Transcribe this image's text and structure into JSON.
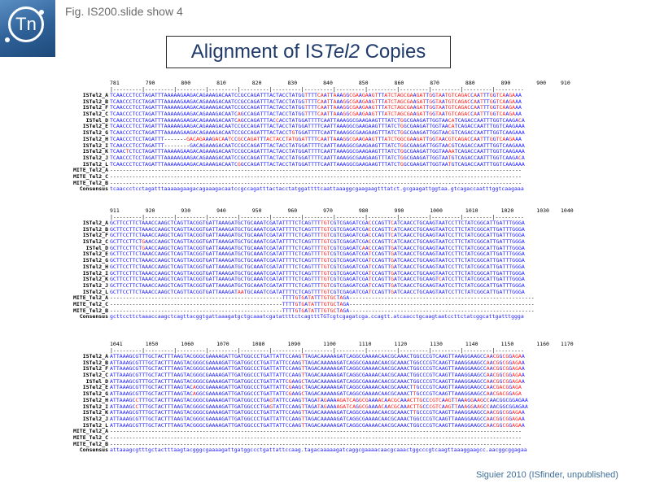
{
  "header": {
    "figure_label": "Fig. IS200.slide show 4",
    "title": "Alignment of ISTel2 Copies",
    "title_prefix": "Alignment of IS",
    "title_italic": "Tel2",
    "title_suffix": " Copies",
    "logo_text": "Tn"
  },
  "credit": "Siguier 2010 (ISfinder, unpublished)",
  "colors": {
    "identity": "#1a1aff",
    "variant": "#ff1a1a",
    "label": "#000000",
    "title": "#1f3a6b"
  },
  "blocks": [
    {
      "ruler": [
        "781",
        "790",
        "800",
        "810",
        "820",
        "830",
        "840",
        "850",
        "860",
        "870",
        "880",
        "890",
        "900",
        "910"
      ],
      "rows": [
        {
          "label": "ISTel2_A",
          "seq": "TCAACCCTCCTAGATTTAAAAAGAAGACAGAAAGACAATCCGCCAGATTTACTACCTATGGTTTTCAATTAAAGGCGAAGAAGTTTATCTAGCGAAGATTGGTAATGTCAGACCAATTTGGTCAAGAAA"
        },
        {
          "label": "ISTel2_B",
          "seq": "TCAACCCTCCTAGATTTAAAAAGAAGACAGAAAGACAATCCGCCAGATTTACTACCTATGGTTTTCAATTAAAGGCGAAGAAGTTTATCTAGCGAAGATTGGTAATGTCAGACCAATTTGGTCAAGAAA"
        },
        {
          "label": "ISTel2_F",
          "seq": "TCAACCCTCCTAGATTTAAAAAGAAGACAGAAAGACAATCCGCCAGATTTACTACCTATGGTTTTCAATTAAAGGCGAAGAAGTTTATCTAGCGAAGATTGGTAATGTCAGACCAATTTGGTCAAGAAA"
        },
        {
          "label": "ISTel2_C",
          "seq": "TCAACCCTCCTAGATTTAAAAAGAAGACAGAAAGACAATCAGCCAGATTTACTACCTATGGTTTTCAATTAAAGGCGAAGAAGTTTATCTAGCGAAGATTGGTAATGTCAGACCAATTTGGTCAAGAAA"
        },
        {
          "label": "ISTel_D",
          "seq": "TCAACCCTCCTAGATTTAAAAAGAAGACAGAAAGACAATCAGCCAGATTTACCACCTATGGATTTTCAATTAAAGGCGAAGAAGTTTATCTGGCGAAGATTGGTAACATCAGACCAATTTGGTCAAGACA"
        },
        {
          "label": "ISTel2_E",
          "seq": "TCAACCCTCCTAGATTTAAAAAGAAGACAGAAAGACAATCCGCCAGATTTACTACCTATGGATTTTCAATTAAAGGCGAAGAAGTTTATCTGGCGAAGATTGGTAACATCAGACCAATTTGGTCAAGAAA"
        },
        {
          "label": "ISTel2_G",
          "seq": "TCAACCCTCCTAGATTTAAAAAGAAGACAGAAAGACAATCCGCCAGATTTACTACCTGTGGATTTTCAATTAAAGGCGAAGAAGTTTATCTGGCGAAGATTGGTAACGTCAGACCAATTTGGTCAAGAAA"
        },
        {
          "label": "ISTel2_H",
          "seq": "TCAACCCTCCTAGATTT-------GACAGAAAGACAATCCGCCAGATTTACTACCTATGGATTTTCAATTAAAGGCGAAGAAGTTTATCTGGCGAAGATTGGTAACGTCAGACCAATTTGGTCAAGAAA"
        },
        {
          "label": "ISTel2_I",
          "seq": "TCAACCCTCCTAGATTT--------GACAGAAAGACAATCCGCCAGATTTACTACCTATGGATTTTCAATTAAAGGCGAAGAAGTTTATCTGGCGAAGATTGGTAACGTCAGACCAATTTGGTCAAGAAA"
        },
        {
          "label": "ISTel2_K",
          "seq": "TCAACTCTCCTAGATTTAAAAAGAAGACAGAAAGACAATCCGCCAGATTTACTACCTATGGATTTTCAATTAAAGGCGAAGAAGTTTATCTGGCGAAGATTGGTAAAATCAGACCAATTTGGTCAAGAAA"
        },
        {
          "label": "ISTel2_J",
          "seq": "TCAACCCTCCTAGATTTAAAAAGAAGACAGAAAGACAATCCGCCAGATTTACTACCTATGGATTTTCAATTAAAGGCGAAGAAGTTTATCTGGCGAAGATTGGTAATGTCAGACCAATTTGGTCAAGACA"
        },
        {
          "label": "ISTel2_L",
          "seq": "TCAACCCTCCTAGATTTAAAAAGAAGACAGAAAGACAATCGGCCAGATTTACTACCTATGGATTTTCAATTAAAGGCGAAGAAGTTTATCTGGCGAAGATTGGTAATGTCAGACCAATTTGGTCAAGAAA"
        },
        {
          "label": "MITE_Tel2_A",
          "seq": "---------------------------------------------------------------------------------------------------------------------------------"
        },
        {
          "label": "MITE_Tel2_C",
          "seq": "---------------------------------------------------------------------------------------------------------------------------------"
        },
        {
          "label": "MITE_Tel2_B",
          "seq": "---------------------------------------------------------------------------------------------------------------------------------"
        },
        {
          "label": "Consensus",
          "seq": "tcaaccctcctagatttaaaaagaagacagaaagacaatccgccagatttactacctatggattttcaattaaaggcgaagaagtttatct.gcgaagattggtaa.gtcagaccaatttggtcaagaaa"
        }
      ]
    },
    {
      "ruler": [
        "911",
        "920",
        "930",
        "940",
        "950",
        "960",
        "970",
        "980",
        "990",
        "1000",
        "1010",
        "1020",
        "1030",
        "1040"
      ],
      "rows": [
        {
          "label": "ISTel2_A",
          "seq": "GCTTCCTTCTAAACCAAGCTCAGTTACGGTGATTAAAGATGCTGCAAATCGATATTTTCTCAGTTTTGTCGTCGAGATCGACCCAGTTCATCAACCTGCAAGTAATCCTTCTATCGGCATTGATTTGGGA"
        },
        {
          "label": "ISTel2_B",
          "seq": "GCTTCCTTCTAAACCAAGCTCAGTTACGGTGATTAAAGATGCTGCAAATCGATATTTTCTCAGTTTTGTCGTCGAGATCGACCCAGTTCATCAACCTGCAAGTAATCCTTCTATCGGCATTGATTTGGGA"
        },
        {
          "label": "ISTel2_F",
          "seq": "GCTTCCTTCTAAACCAAGCTCAGTTACGGTGATTAAAGATGCTGCAAATCGATATTTTCTCAGTTTTGTCGTCGAGATCGACCCAGTTCATCAACCTGCAAGTAATCCTTCTATCGGCATTGATTTGGGA"
        },
        {
          "label": "ISTel2_C",
          "seq": "GCTTCCTTCTGAACCAAGCTCAGTTACGGTGATTAAAGATGCTGCAAATCGATATTTTCTCAGTTTTGTCGTCGAGATCGACCCAGTTCATCAACCTGCAAGTAATCCTTCTATCGGCATTGATTTGGGA"
        },
        {
          "label": "ISTel_D",
          "seq": "GCTTCCTTCTGAACCAAGCTCAGTTACGGTGATTAAAGATGCTGCAAATCGATATTTTCTCAGTTTTGTCGTCGAGATCAACCCAGTTGATCAACCTGCAAGTAATCCTTCTATCGGCATTGATTTGGGA"
        },
        {
          "label": "ISTel2_E",
          "seq": "GCTTCCTTCTAAACCAAGCTCAGTTACGGTGATTAAAGATGCTGCAAATCGATATTTTCTCAGTTTTGTCGTCGAGATCGATCCAGTTGATCAACCTGCAAGTAATCCTTCTATCGGCATTGATTTGGGA"
        },
        {
          "label": "ISTel2_G",
          "seq": "GCTTCCTTCTAAACCAAGCTCAGTTACGGTGATTAAAGATGCTGCAAATCGATATTTTCTCAGTTTTGTCGTCGAGATCGATCCAGTTGATCAACCTGCAAGTAATCCTTCTATCGGCATTGATTTGGGA"
        },
        {
          "label": "ISTel2_H",
          "seq": "GCTTCCTTCTAAACCAAGCTCAGTTACGGTGATTAAAGATGCTGCAAATCGATATTTTCTCAGTTTTGTCGTCGAGATCGATCCAGTTGATCAACCTGCAAGTAATCCTTCTATCGGCATTGATTTGGGA"
        },
        {
          "label": "ISTel2_I",
          "seq": "GCTTCCTTCTAAACCAAGCTCAGTTACGGTGATTAAAGATGCTGCAAATCGATATTTTCTCAGTTTTGTCGTCGAGATCGATCCAGTTGATCAACCTGCAAGTAATCCTTCTATCGGCATTGATTTGGGA"
        },
        {
          "label": "ISTel2_K",
          "seq": "GCTTCCTTCTAAACCAAGCTCAGTTACGGTGATTAAAGATGCTGCAAATCGATATTTTCTCAGTTTTGTCGTCGAGATCGATCCAGTTGATCAACCTGCAAGTCATCCTTCTATCGGCATTGATTTGGGA"
        },
        {
          "label": "ISTel2_J",
          "seq": "GCTTCCTTCTAAACCAAGCTCAGTTACGGTGATTAAAGATGCTGCAAATCGATATTTTCTCAGTTTTGTCGTCGAGATCGATCCAGTTGATCAACCTGCAAGTAATCCTTCTATCGGCATTGATTTGGGA"
        },
        {
          "label": "ISTel2_L",
          "seq": "GCTTCCTTCTAAACCAAGCTCAGTTACGGTGATTAAAGATAATGCAAATCGATATTTTCTCAGTTTTGTCGTCGAGATCGATCCAGTTGATCAACCTGCAAGTAATCCTTCTATCGGCATTGATTTGGGA"
        },
        {
          "label": "MITE_Tel2_A",
          "seq": "------------------------------------------------------TTTTGTGATATTTGTGCTAGA----------------------------------------------------------"
        },
        {
          "label": "MITE_Tel2_C",
          "seq": "------------------------------------------------------TTTTGTGATATTTGTGCTAGA----------------------------------------------------------"
        },
        {
          "label": "MITE_Tel2_B",
          "seq": "------------------------------------------------------TTTTGTGATATTTGTGCTAGA----------------------------------------------------------"
        },
        {
          "label": "Consensus",
          "seq": "gcttccttctaaaccaagctcagttacggtgattaaagatgctgcaaatcgatattttctcagtttTGTcgtcgagatcga.ccagtt.atcaacctgcaagtaatccttctatcggcattgatttggga"
        }
      ]
    },
    {
      "ruler": [
        "1041",
        "1050",
        "1060",
        "1070",
        "1080",
        "1090",
        "1100",
        "1110",
        "1120",
        "1130",
        "1140",
        "1150",
        "1160",
        "1170"
      ],
      "rows": [
        {
          "label": "ISTel2_A",
          "seq": "ATTAAAGCGTTTGCTACTTTAAGTACGGGCGAAAAGATTGATGGCCCTGATTATTCCAAGTTAGACAAAAAGATCAGGCGAAAACAACGCAAACTGGCCCGTCAAGTTAAAGGAAGCCAACGGCGGAGAA"
        },
        {
          "label": "ISTel2_B",
          "seq": "ATTAAAGCGTTTGCTACTTTAAGTACGGGCGAAAAGATTGATGGCCCTGATTATTCCAAGTTAGACAAAAAGATCAGGCGAAAACAACGCAAACTGGCCCGTCAAGTTAAAGGAAGCCAACGGCGGAGAA"
        },
        {
          "label": "ISTel2_F",
          "seq": "ATTAAAGCGTTTGCTACTTTAAGTACGGGCGAAAAGATTGATGGCCCTGATTATTCCAAGTTAGACAAAAAGATCAGGCGAAAACAACGCAAACTGGCCCGTCAAGTTAAAGGAAGCCAACGGCGGAGAA"
        },
        {
          "label": "ISTel2_C",
          "seq": "ATTAAAGCGTTTGCTACTTTAAGTACGGGCGAAAAGATTGATGGCCCTGATTATTCCAAGTTAGACAAAAAGATCAGGCGAAAACAACGCAAACTGGCCCGTCAAGTTAAAGGAAGCCAACGGCGGAGAA"
        },
        {
          "label": "ISTel_D",
          "seq": "ATTAAAGCGTTTGCTACTTTAAGTACGGGCGAAAAGATTGATGGCCCTGATTATTCGAAGCTAGACAAAAAGATCAGGCGAAAACAACGCAAACTGGCCCGTCAAGTTAAAGGAAGCCAACGGCGGAGAA"
        },
        {
          "label": "ISTel2_E",
          "seq": "ATTAAAGCGTTTGCTACTTTAAGTACAGGCGAAAAGATTGATGGCCCTGATTATTCGAAGCTAGACAAAAAGATCAGGCGAAAACAACGCAAACTTGCCCGTCAAGTTAAAGGAAGCCAACGACGGAGA"
        },
        {
          "label": "ISTel2_G",
          "seq": "ATTAAAGCGTTTGCTACTTTAAGTACAGGCGAAAAGATTGATGGCCCTGATTATTCGAAGCTAGACAAAAAGATCAGGCGAAAACAACGCAAACTTGCCCGTCAAGTTAAAGGAAGCCAACGACGGAGA"
        },
        {
          "label": "ISTel2_H",
          "seq": "ATTAAAGCCTTTGCTACTTTAAGTACGGGCGAAAAGATTGATGGCCCTGAGTATTCCAAGTTAGATAGAAAAGATCAGGCGAAAACAACGCAAACTTGCCCGTCAAGTTAAAGGAAGCCAACGGCGGAGAA"
        },
        {
          "label": "ISTel2_I",
          "seq": "ATTAAAGCCTTTGCTACTTTAAGTACGGGCGAAAAGATTGATGGCCCTGAGTATTCCAAGTTAGATAGAAAAGATCAGGCGAAAACAACGCAAACTTGCCCGTCAAGTTAAAGGAAGCCAACGGCGGAGAA"
        },
        {
          "label": "ISTel2_K",
          "seq": "ATTAAAGCGTTTGCTACTTTAAGTACGGGCGAAAAGATTGATGGCCCTGATTATTCCAAGTTAGACAAAAAGATCAGGCGAAAACAACGCAAACTTGCCCGTCAAGTTAAAGGAAGCCAACGGCGGAGAA"
        },
        {
          "label": "ISTel2_J",
          "seq": "ATTAAAGCGTTTGCTACTTTAAGTACGGGCGAAAAGATTGATGGCCCTGATTATTCCAAGTTAGACAAAAAGATCAGGCGAAAACAACGCAAACTGGCCCGTCAAGTTAAAGGAAGCCAACGGCGGAGAA"
        },
        {
          "label": "ISTel2_L",
          "seq": "ATTAAAGCGTTTGCTACTTTAAGTACGGGCGAAAAGATTGATGGCCCTGATTATTCCAAGTTAGACAAAAAGATCAGGCGAAAACAACGCAAACTGGCCCGTCAAGTTAAAGGAAGCCAACGGCGGAGAA"
        },
        {
          "label": "MITE_Tel2_A",
          "seq": "---------------------------------------------------------------------------------------------------------------------------------"
        },
        {
          "label": "MITE_Tel2_C",
          "seq": "---------------------------------------------------------------------------------------------------------------------------------"
        },
        {
          "label": "MITE_Tel2_B",
          "seq": "---------------------------------------------------------------------------------------------------------------------------------"
        },
        {
          "label": "Consensus",
          "seq": "attaaagcgtttgctactttaagtacgggcgaaaagattgatggccctgattattccaag.tagacaaaaagatcaggcgaaaacaacgcaaactggcccgtcaagttaaaggaagcc.aacggcggagaa"
        }
      ]
    }
  ]
}
